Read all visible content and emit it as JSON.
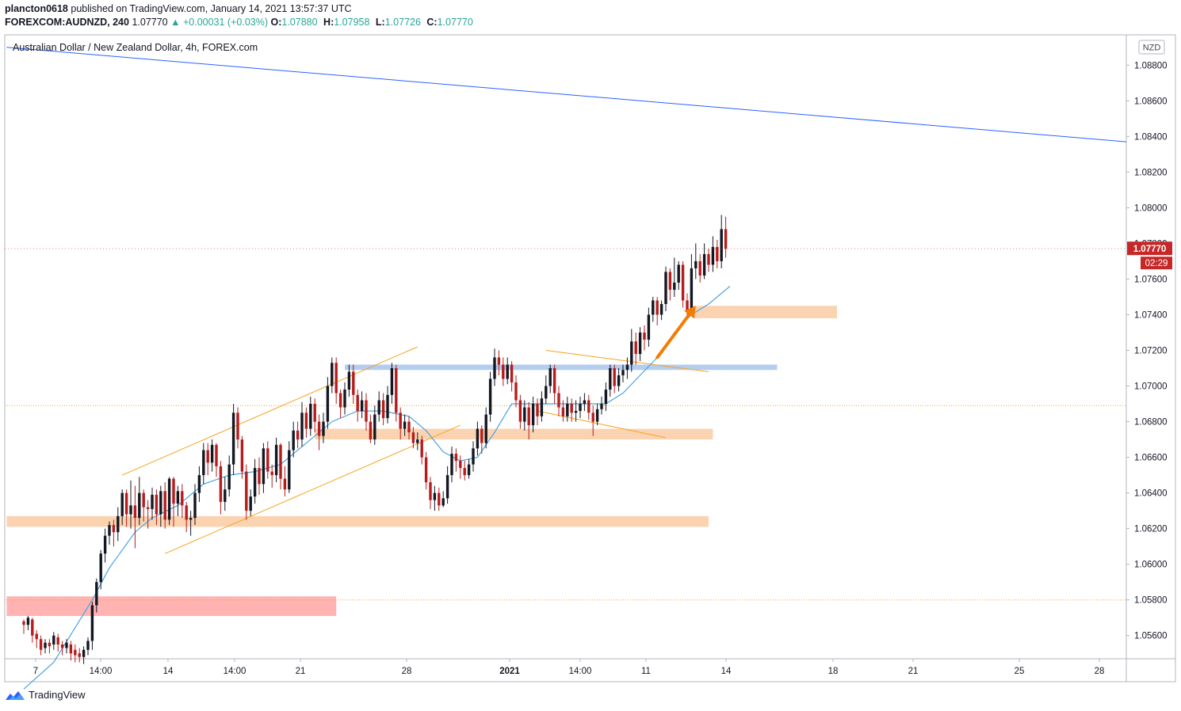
{
  "header": {
    "publisher": "plancton0618",
    "published_text": "published on TradingView.com, January 14, 2021 13:57:37 UTC",
    "symbol": "FOREXCOM:AUDNZD, 240",
    "last": "1.07770",
    "change": "▲ +0.00031 (+0.03%)",
    "o_label": "O:",
    "o_value": "1.07880",
    "h_label": "H:",
    "h_value": "1.07958",
    "l_label": "L:",
    "l_value": "1.07726",
    "c_label": "C:",
    "c_value": "1.07770"
  },
  "footer": {
    "brand": "TradingView"
  },
  "chart_data": {
    "type": "candlestick",
    "title": "Australian Dollar / New Zealand Dollar, 4h, FOREX.com",
    "currency_badge": "NZD",
    "price_label": "1.07770",
    "countdown_label": "02:29",
    "ylim": [
      1.0547,
      1.0897
    ],
    "y_ticks": [
      "1.08800",
      "1.08600",
      "1.08400",
      "1.08200",
      "1.08000",
      "1.07800",
      "1.07600",
      "1.07400",
      "1.07200",
      "1.07000",
      "1.06800",
      "1.06600",
      "1.06400",
      "1.06200",
      "1.06000",
      "1.05800",
      "1.05600"
    ],
    "x_ticks": [
      "7",
      "14:00",
      "14",
      "14:00",
      "21",
      "28",
      "2021",
      "14:00",
      "11",
      "14",
      "18",
      "21",
      "25",
      "28"
    ],
    "colors": {
      "bull": "#131722",
      "bear": "#b71c1c",
      "ema": "#4aa3df",
      "trendline": "#2962ff",
      "channel": "#f7a21b",
      "zone_orange": "#fbd3b1",
      "zone_red": "#ffb3b3",
      "zone_blue": "#b3cdf0",
      "arrow": "#f57c00",
      "price_badge": "#c62828",
      "dotted_line": "#f5a623"
    },
    "candles": [
      [
        1.0568,
        1.0566,
        1.0561,
        1.0569
      ],
      [
        1.0566,
        1.057,
        1.0563,
        1.0571
      ],
      [
        1.0569,
        1.056,
        1.0556,
        1.057
      ],
      [
        1.0561,
        1.0558,
        1.0553,
        1.0563
      ],
      [
        1.0558,
        1.0552,
        1.0549,
        1.056
      ],
      [
        1.0553,
        1.0556,
        1.055,
        1.0558
      ],
      [
        1.0556,
        1.0554,
        1.055,
        1.0558
      ],
      [
        1.0555,
        1.056,
        1.0552,
        1.0562
      ],
      [
        1.0559,
        1.0555,
        1.0551,
        1.0561
      ],
      [
        1.0555,
        1.0553,
        1.0549,
        1.0557
      ],
      [
        1.0553,
        1.0556,
        1.055,
        1.0558
      ],
      [
        1.0555,
        1.055,
        1.0546,
        1.0557
      ],
      [
        1.0552,
        1.0549,
        1.0545,
        1.0555
      ],
      [
        1.055,
        1.0548,
        1.0545,
        1.0553
      ],
      [
        1.0548,
        1.0552,
        1.0544,
        1.0554
      ],
      [
        1.0552,
        1.0557,
        1.0549,
        1.0559
      ],
      [
        1.0557,
        1.0577,
        1.0552,
        1.0579
      ],
      [
        1.0577,
        1.059,
        1.0573,
        1.0592
      ],
      [
        1.059,
        1.0606,
        1.0586,
        1.0608
      ],
      [
        1.0606,
        1.0616,
        1.0601,
        1.062
      ],
      [
        1.0616,
        1.0622,
        1.0611,
        1.0624
      ],
      [
        1.0622,
        1.0618,
        1.061,
        1.0625
      ],
      [
        1.0618,
        1.0627,
        1.0613,
        1.0632
      ],
      [
        1.0627,
        1.064,
        1.0622,
        1.0642
      ],
      [
        1.064,
        1.0628,
        1.0621,
        1.0642
      ],
      [
        1.0628,
        1.0633,
        1.062,
        1.0647
      ],
      [
        1.0633,
        1.0626,
        1.0609,
        1.0644
      ],
      [
        1.0626,
        1.064,
        1.0622,
        1.0649
      ],
      [
        1.064,
        1.0632,
        1.0624,
        1.0642
      ],
      [
        1.0632,
        1.0631,
        1.062,
        1.0636
      ],
      [
        1.0631,
        1.0639,
        1.0625,
        1.0643
      ],
      [
        1.0639,
        1.0628,
        1.0622,
        1.0642
      ],
      [
        1.0628,
        1.0641,
        1.0621,
        1.0644
      ],
      [
        1.0641,
        1.0625,
        1.062,
        1.0646
      ],
      [
        1.0625,
        1.0648,
        1.0622,
        1.0649
      ],
      [
        1.0648,
        1.0634,
        1.0621,
        1.0649
      ],
      [
        1.0634,
        1.0641,
        1.0627,
        1.0644
      ],
      [
        1.0641,
        1.0633,
        1.0626,
        1.0645
      ],
      [
        1.0633,
        1.0625,
        1.0618,
        1.0635
      ],
      [
        1.0625,
        1.0626,
        1.0616,
        1.063
      ],
      [
        1.0626,
        1.064,
        1.0622,
        1.0645
      ],
      [
        1.064,
        1.065,
        1.0635,
        1.0655
      ],
      [
        1.065,
        1.0664,
        1.0645,
        1.0668
      ],
      [
        1.0664,
        1.0657,
        1.065,
        1.0668
      ],
      [
        1.0657,
        1.0667,
        1.0652,
        1.067
      ],
      [
        1.0667,
        1.0655,
        1.0649,
        1.0668
      ],
      [
        1.0655,
        1.0635,
        1.0628,
        1.0658
      ],
      [
        1.0635,
        1.0642,
        1.063,
        1.0649
      ],
      [
        1.0642,
        1.0656,
        1.0638,
        1.0661
      ],
      [
        1.0656,
        1.0685,
        1.065,
        1.069
      ],
      [
        1.0685,
        1.067,
        1.0665,
        1.0688
      ],
      [
        1.067,
        1.0652,
        1.0648,
        1.0672
      ],
      [
        1.0652,
        1.063,
        1.0625,
        1.0656
      ],
      [
        1.063,
        1.0638,
        1.0627,
        1.0642
      ],
      [
        1.0638,
        1.0654,
        1.0634,
        1.0659
      ],
      [
        1.0654,
        1.0645,
        1.0639,
        1.066
      ],
      [
        1.0645,
        1.0665,
        1.064,
        1.0668
      ],
      [
        1.0665,
        1.0652,
        1.0648,
        1.0669
      ],
      [
        1.0652,
        1.065,
        1.0643,
        1.0656
      ],
      [
        1.065,
        1.0667,
        1.0646,
        1.0671
      ],
      [
        1.0667,
        1.0648,
        1.0642,
        1.0668
      ],
      [
        1.0648,
        1.0642,
        1.0638,
        1.0655
      ],
      [
        1.0642,
        1.0664,
        1.064,
        1.0669
      ],
      [
        1.0664,
        1.0675,
        1.066,
        1.068
      ],
      [
        1.0675,
        1.067,
        1.0665,
        1.068
      ],
      [
        1.067,
        1.0685,
        1.0666,
        1.0691
      ],
      [
        1.0685,
        1.0676,
        1.0671,
        1.0688
      ],
      [
        1.0676,
        1.069,
        1.0672,
        1.0694
      ],
      [
        1.069,
        1.068,
        1.0674,
        1.0693
      ],
      [
        1.068,
        1.0672,
        1.0664,
        1.0684
      ],
      [
        1.0672,
        1.068,
        1.0668,
        1.0685
      ],
      [
        1.068,
        1.07,
        1.0676,
        1.0705
      ],
      [
        1.07,
        1.0713,
        1.0696,
        1.0716
      ],
      [
        1.0713,
        1.0696,
        1.069,
        1.0716
      ],
      [
        1.0696,
        1.0688,
        1.0682,
        1.0698
      ],
      [
        1.0688,
        1.0698,
        1.0684,
        1.0702
      ],
      [
        1.0698,
        1.0708,
        1.0694,
        1.0712
      ],
      [
        1.0708,
        1.0695,
        1.069,
        1.0712
      ],
      [
        1.0695,
        1.0686,
        1.068,
        1.0698
      ],
      [
        1.0686,
        1.0692,
        1.0682,
        1.0697
      ],
      [
        1.0692,
        1.068,
        1.0675,
        1.0696
      ],
      [
        1.068,
        1.067,
        1.0668,
        1.0684
      ],
      [
        1.067,
        1.0684,
        1.0667,
        1.0689
      ],
      [
        1.0684,
        1.0692,
        1.068,
        1.0697
      ],
      [
        1.0692,
        1.0682,
        1.0678,
        1.0696
      ],
      [
        1.0682,
        1.0695,
        1.0679,
        1.07
      ],
      [
        1.0695,
        1.071,
        1.069,
        1.0713
      ],
      [
        1.071,
        1.0685,
        1.068,
        1.0712
      ],
      [
        1.0685,
        1.0676,
        1.067,
        1.0688
      ],
      [
        1.0676,
        1.068,
        1.0672,
        1.0684
      ],
      [
        1.068,
        1.0674,
        1.067,
        1.0683
      ],
      [
        1.0674,
        1.0668,
        1.0665,
        1.0677
      ],
      [
        1.0668,
        1.067,
        1.0664,
        1.0674
      ],
      [
        1.067,
        1.066,
        1.0656,
        1.0672
      ],
      [
        1.066,
        1.0646,
        1.0642,
        1.0663
      ],
      [
        1.0646,
        1.0636,
        1.0631,
        1.0649
      ],
      [
        1.0636,
        1.064,
        1.063,
        1.0644
      ],
      [
        1.064,
        1.0633,
        1.063,
        1.0643
      ],
      [
        1.0633,
        1.0637,
        1.0632,
        1.0641
      ],
      [
        1.0637,
        1.065,
        1.0634,
        1.0655
      ],
      [
        1.065,
        1.0662,
        1.0646,
        1.0666
      ],
      [
        1.0662,
        1.0658,
        1.0652,
        1.0665
      ],
      [
        1.0658,
        1.0654,
        1.0648,
        1.0661
      ],
      [
        1.0654,
        1.065,
        1.0647,
        1.0658
      ],
      [
        1.065,
        1.0656,
        1.0648,
        1.0659
      ],
      [
        1.0656,
        1.0665,
        1.0652,
        1.0669
      ],
      [
        1.0665,
        1.0676,
        1.0661,
        1.068
      ],
      [
        1.0676,
        1.0668,
        1.0662,
        1.0678
      ],
      [
        1.0668,
        1.0684,
        1.0665,
        1.0688
      ],
      [
        1.0684,
        1.0704,
        1.068,
        1.0708
      ],
      [
        1.0704,
        1.0716,
        1.07,
        1.0721
      ],
      [
        1.0716,
        1.0712,
        1.0706,
        1.072
      ],
      [
        1.0712,
        1.0704,
        1.07,
        1.0716
      ],
      [
        1.0704,
        1.0712,
        1.0701,
        1.0716
      ],
      [
        1.0712,
        1.0702,
        1.0697,
        1.0714
      ],
      [
        1.0702,
        1.0692,
        1.0688,
        1.0706
      ],
      [
        1.0692,
        1.068,
        1.0676,
        1.0695
      ],
      [
        1.068,
        1.0688,
        1.0675,
        1.0692
      ],
      [
        1.0688,
        1.0678,
        1.067,
        1.0691
      ],
      [
        1.0678,
        1.069,
        1.0674,
        1.0694
      ],
      [
        1.069,
        1.0683,
        1.0678,
        1.0693
      ],
      [
        1.0683,
        1.0693,
        1.068,
        1.0697
      ],
      [
        1.0693,
        1.07,
        1.069,
        1.0706
      ],
      [
        1.07,
        1.071,
        1.0696,
        1.0712
      ],
      [
        1.071,
        1.0696,
        1.069,
        1.0712
      ],
      [
        1.0696,
        1.0688,
        1.0683,
        1.07
      ],
      [
        1.0688,
        1.0683,
        1.068,
        1.0692
      ],
      [
        1.0683,
        1.069,
        1.068,
        1.0694
      ],
      [
        1.069,
        1.0685,
        1.068,
        1.0693
      ],
      [
        1.0685,
        1.0686,
        1.068,
        1.0692
      ],
      [
        1.0686,
        1.069,
        1.0682,
        1.0694
      ],
      [
        1.069,
        1.0692,
        1.0686,
        1.0696
      ],
      [
        1.0692,
        1.0685,
        1.0681,
        1.0695
      ],
      [
        1.0685,
        1.068,
        1.0672,
        1.0689
      ],
      [
        1.068,
        1.0687,
        1.0678,
        1.069
      ],
      [
        1.0687,
        1.069,
        1.0684,
        1.0694
      ],
      [
        1.069,
        1.0698,
        1.0686,
        1.0702
      ],
      [
        1.0698,
        1.071,
        1.0694,
        1.0712
      ],
      [
        1.071,
        1.07,
        1.0696,
        1.0712
      ],
      [
        1.07,
        1.0706,
        1.0697,
        1.071
      ],
      [
        1.0706,
        1.0709,
        1.0702,
        1.0712
      ],
      [
        1.0709,
        1.0712,
        1.0704,
        1.0716
      ],
      [
        1.0712,
        1.0725,
        1.0708,
        1.0732
      ],
      [
        1.0725,
        1.0718,
        1.0712,
        1.073
      ],
      [
        1.0718,
        1.073,
        1.0714,
        1.0733
      ],
      [
        1.073,
        1.0726,
        1.072,
        1.0734
      ],
      [
        1.0726,
        1.074,
        1.0722,
        1.0744
      ],
      [
        1.074,
        1.0748,
        1.0736,
        1.075
      ],
      [
        1.0748,
        1.074,
        1.0734,
        1.075
      ],
      [
        1.074,
        1.0746,
        1.0737,
        1.0748
      ],
      [
        1.0746,
        1.0764,
        1.0742,
        1.0767
      ],
      [
        1.0764,
        1.0754,
        1.0748,
        1.0766
      ],
      [
        1.0754,
        1.0758,
        1.075,
        1.0772
      ],
      [
        1.0758,
        1.0768,
        1.0754,
        1.077
      ],
      [
        1.0768,
        1.0748,
        1.0744,
        1.077
      ],
      [
        1.0748,
        1.0742,
        1.0738,
        1.0752
      ],
      [
        1.0742,
        1.0766,
        1.074,
        1.0774
      ],
      [
        1.0766,
        1.077,
        1.076,
        1.078
      ],
      [
        1.077,
        1.0762,
        1.0758,
        1.0774
      ],
      [
        1.0762,
        1.0774,
        1.076,
        1.078
      ],
      [
        1.0774,
        1.0768,
        1.0764,
        1.0777
      ],
      [
        1.0768,
        1.0778,
        1.0764,
        1.0784
      ],
      [
        1.0778,
        1.077,
        1.0766,
        1.0782
      ],
      [
        1.077,
        1.0788,
        1.0766,
        1.0796
      ],
      [
        1.0788,
        1.0777,
        1.0772,
        1.0795
      ]
    ],
    "ema": [
      [
        0,
        1.053
      ],
      [
        7,
        1.0545
      ],
      [
        16,
        1.058
      ],
      [
        20,
        1.0598
      ],
      [
        26,
        1.0618
      ],
      [
        30,
        1.0626
      ],
      [
        36,
        1.0633
      ],
      [
        42,
        1.0645
      ],
      [
        48,
        1.065
      ],
      [
        54,
        1.0652
      ],
      [
        60,
        1.0656
      ],
      [
        66,
        1.0668
      ],
      [
        72,
        1.068
      ],
      [
        78,
        1.0686
      ],
      [
        84,
        1.0686
      ],
      [
        90,
        1.0683
      ],
      [
        94,
        1.0675
      ],
      [
        98,
        1.0663
      ],
      [
        102,
        1.0658
      ],
      [
        106,
        1.066
      ],
      [
        110,
        1.0674
      ],
      [
        114,
        1.069
      ],
      [
        118,
        1.069
      ],
      [
        124,
        1.069
      ],
      [
        130,
        1.069
      ],
      [
        136,
        1.069
      ],
      [
        140,
        1.0696
      ],
      [
        144,
        1.0706
      ],
      [
        148,
        1.0716
      ],
      [
        152,
        1.073
      ],
      [
        156,
        1.074
      ],
      [
        160,
        1.0746
      ],
      [
        165,
        1.0756
      ]
    ],
    "zones": [
      {
        "color": "red",
        "price_top": 1.0582,
        "price_bottom": 1.0571,
        "start_index": -4,
        "end_index": 73
      },
      {
        "color": "orange",
        "price_top": 1.0627,
        "price_bottom": 1.0621,
        "start_index": -4,
        "end_index": 160
      },
      {
        "color": "orange",
        "price_top": 1.0676,
        "price_bottom": 1.067,
        "start_index": 68,
        "end_index": 161
      },
      {
        "color": "orange",
        "price_top": 1.0745,
        "price_bottom": 1.0738,
        "start_index": 156,
        "end_index": 190
      },
      {
        "color": "blue",
        "price_top": 1.0712,
        "price_bottom": 1.0709,
        "start_index": 75,
        "end_index": 176
      }
    ],
    "lines": [
      {
        "role": "trendline",
        "from": [
          -4,
          1.089
        ],
        "to": [
          288,
          1.0837
        ]
      },
      {
        "role": "channel",
        "from": [
          23,
          1.065
        ],
        "to": [
          92,
          1.0722
        ]
      },
      {
        "role": "channel",
        "from": [
          33,
          1.0606
        ],
        "to": [
          102,
          1.0678
        ]
      },
      {
        "role": "channel",
        "from": [
          122,
          1.072
        ],
        "to": [
          160,
          1.0708
        ]
      },
      {
        "role": "channel",
        "from": [
          120,
          1.0686
        ],
        "to": [
          150,
          1.0671
        ]
      }
    ],
    "reference_lines": [
      1.0689,
      1.058
    ],
    "arrow": {
      "from": [
        148,
        1.0716
      ],
      "to": [
        157,
        1.0745
      ]
    }
  }
}
